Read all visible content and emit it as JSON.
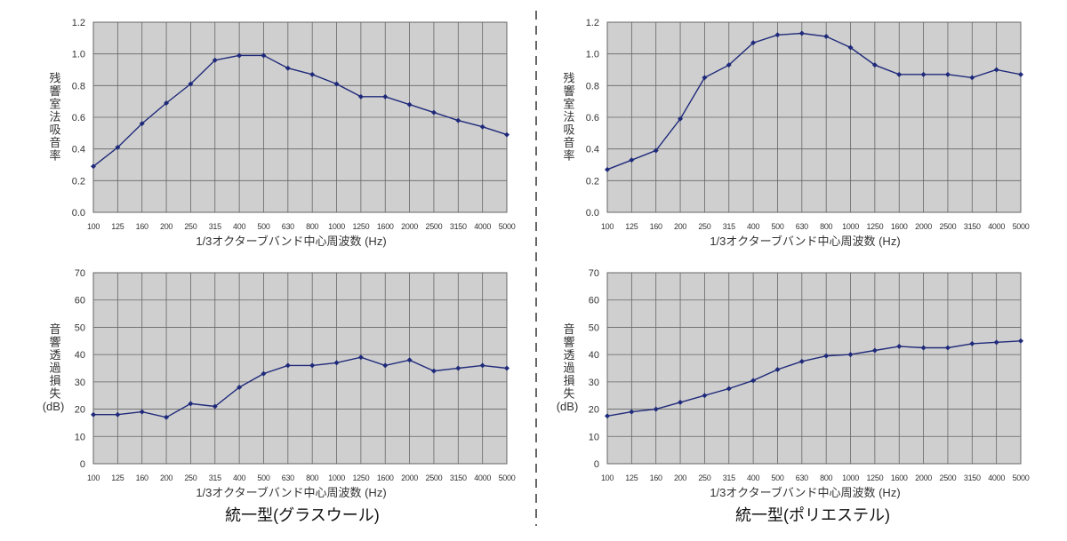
{
  "colors": {
    "plot_bg": "#cfcfcf",
    "grid": "#666666",
    "line": "#1f2a7a",
    "divider": "#333333"
  },
  "panel_titles": [
    "統一型(グラスウール)",
    "統一型(ポリエステル)"
  ],
  "chart_data": [
    {
      "type": "line",
      "panel": "top-left",
      "categories": [
        "100",
        "125",
        "160",
        "200",
        "250",
        "315",
        "400",
        "500",
        "630",
        "800",
        "1000",
        "1250",
        "1600",
        "2000",
        "2500",
        "3150",
        "4000",
        "5000"
      ],
      "series": [
        {
          "values": [
            0.29,
            0.41,
            0.56,
            0.69,
            0.81,
            0.96,
            0.99,
            0.99,
            0.91,
            0.87,
            0.81,
            0.73,
            0.73,
            0.68,
            0.63,
            0.58,
            0.54,
            0.49
          ]
        }
      ],
      "xlabel": "1/3オクターブバンド中心周波数 (Hz)",
      "ylabel_chars": [
        "残",
        "響",
        "室",
        "法",
        "吸",
        "音",
        "率"
      ],
      "ylim": [
        0,
        1.2
      ],
      "yticks": [
        "0.0",
        "0.2",
        "0.4",
        "0.6",
        "0.8",
        "1.0",
        "1.2"
      ],
      "grid": true
    },
    {
      "type": "line",
      "panel": "top-right",
      "categories": [
        "100",
        "125",
        "160",
        "200",
        "250",
        "315",
        "400",
        "500",
        "630",
        "800",
        "1000",
        "1250",
        "1600",
        "2000",
        "2500",
        "3150",
        "4000",
        "5000"
      ],
      "series": [
        {
          "values": [
            0.27,
            0.33,
            0.39,
            0.59,
            0.85,
            0.93,
            1.07,
            1.12,
            1.13,
            1.11,
            1.04,
            0.93,
            0.87,
            0.87,
            0.87,
            0.85,
            0.9,
            0.87
          ]
        }
      ],
      "xlabel": "1/3オクターブバンド中心周波数 (Hz)",
      "ylabel_chars": [
        "残",
        "響",
        "室",
        "法",
        "吸",
        "音",
        "率"
      ],
      "ylim": [
        0,
        1.2
      ],
      "yticks": [
        "0.0",
        "0.2",
        "0.4",
        "0.6",
        "0.8",
        "1.0",
        "1.2"
      ],
      "grid": true
    },
    {
      "type": "line",
      "panel": "bottom-left",
      "categories": [
        "100",
        "125",
        "160",
        "200",
        "250",
        "315",
        "400",
        "500",
        "630",
        "800",
        "1000",
        "1250",
        "1600",
        "2000",
        "2500",
        "3150",
        "4000",
        "5000"
      ],
      "series": [
        {
          "values": [
            18,
            18,
            19,
            17,
            22,
            21,
            28,
            33,
            36,
            36,
            37,
            39,
            36,
            38,
            34,
            35,
            36,
            35
          ]
        }
      ],
      "xlabel": "1/3オクターブバンド中心周波数 (Hz)",
      "ylabel_chars": [
        "音",
        "響",
        "透",
        "過",
        "損",
        "失",
        "(dB)"
      ],
      "ylim": [
        0,
        70
      ],
      "yticks": [
        "0",
        "10",
        "20",
        "30",
        "40",
        "50",
        "60",
        "70"
      ],
      "grid": true
    },
    {
      "type": "line",
      "panel": "bottom-right",
      "categories": [
        "100",
        "125",
        "160",
        "200",
        "250",
        "315",
        "400",
        "500",
        "630",
        "800",
        "1000",
        "1250",
        "1600",
        "2000",
        "2500",
        "3150",
        "4000",
        "5000"
      ],
      "series": [
        {
          "values": [
            17.5,
            19,
            20,
            22.5,
            25,
            27.5,
            30.5,
            34.5,
            37.5,
            39.5,
            40,
            41.5,
            43,
            42.5,
            42.5,
            44,
            44.5,
            45
          ]
        }
      ],
      "xlabel": "1/3オクターブバンド中心周波数 (Hz)",
      "ylabel_chars": [
        "音",
        "響",
        "透",
        "過",
        "損",
        "失",
        "(dB)"
      ],
      "ylim": [
        0,
        70
      ],
      "yticks": [
        "0",
        "10",
        "20",
        "30",
        "40",
        "50",
        "60",
        "70"
      ],
      "grid": true
    }
  ]
}
